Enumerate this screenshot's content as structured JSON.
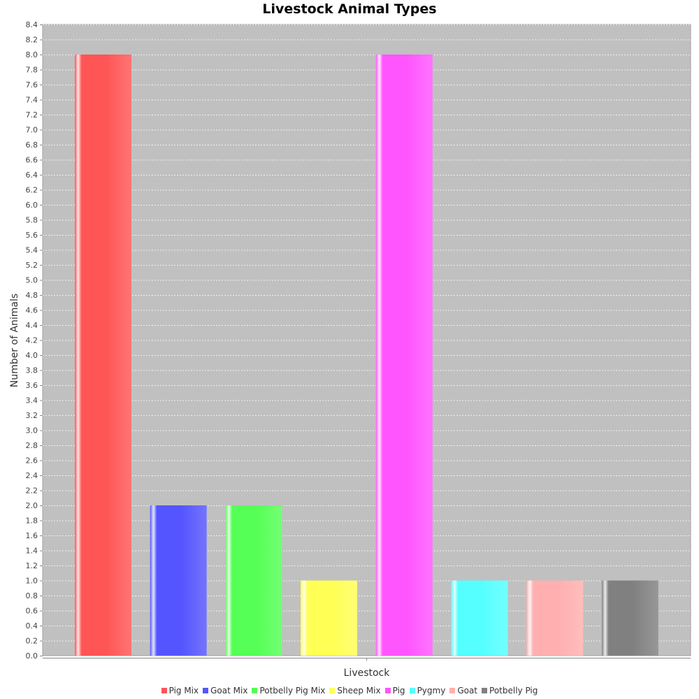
{
  "chart_data": {
    "type": "bar",
    "title": "Livestock Animal Types",
    "xlabel": "Livestock",
    "ylabel": "Number of Animals",
    "ylim": [
      0,
      8.4
    ],
    "ytick_step": 0.2,
    "grid": true,
    "legend_position": "bottom",
    "series": [
      {
        "name": "Pig Mix",
        "value": 8,
        "color": "#ff5555"
      },
      {
        "name": "Goat Mix",
        "value": 2,
        "color": "#5555ff"
      },
      {
        "name": "Potbelly Pig Mix",
        "value": 2,
        "color": "#55ff55"
      },
      {
        "name": "Sheep Mix",
        "value": 1,
        "color": "#ffff55"
      },
      {
        "name": "Pig",
        "value": 8,
        "color": "#ff55ff"
      },
      {
        "name": "Pygmy",
        "value": 1,
        "color": "#55ffff"
      },
      {
        "name": "Goat",
        "value": 1,
        "color": "#ffafaf"
      },
      {
        "name": "Potbelly Pig",
        "value": 1,
        "color": "#808080"
      }
    ]
  }
}
